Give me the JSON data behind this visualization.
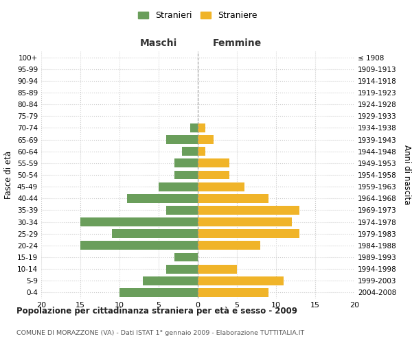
{
  "age_groups": [
    "100+",
    "95-99",
    "90-94",
    "85-89",
    "80-84",
    "75-79",
    "70-74",
    "65-69",
    "60-64",
    "55-59",
    "50-54",
    "45-49",
    "40-44",
    "35-39",
    "30-34",
    "25-29",
    "20-24",
    "15-19",
    "10-14",
    "5-9",
    "0-4"
  ],
  "birth_years": [
    "≤ 1908",
    "1909-1913",
    "1914-1918",
    "1919-1923",
    "1924-1928",
    "1929-1933",
    "1934-1938",
    "1939-1943",
    "1944-1948",
    "1949-1953",
    "1954-1958",
    "1959-1963",
    "1964-1968",
    "1969-1973",
    "1974-1978",
    "1979-1983",
    "1984-1988",
    "1989-1993",
    "1994-1998",
    "1999-2003",
    "2004-2008"
  ],
  "males": [
    0,
    0,
    0,
    0,
    0,
    0,
    1,
    4,
    2,
    3,
    3,
    5,
    9,
    4,
    15,
    11,
    15,
    3,
    4,
    7,
    10
  ],
  "females": [
    0,
    0,
    0,
    0,
    0,
    0,
    1,
    2,
    1,
    4,
    4,
    6,
    9,
    13,
    12,
    13,
    8,
    0,
    5,
    11,
    9
  ],
  "color_males": "#6a9e5b",
  "color_females": "#f0b429",
  "title": "Popolazione per cittadinanza straniera per età e sesso - 2009",
  "subtitle": "COMUNE DI MORAZZONE (VA) - Dati ISTAT 1° gennaio 2009 - Elaborazione TUTTITALIA.IT",
  "xlabel_left": "Maschi",
  "xlabel_right": "Femmine",
  "ylabel_left": "Fasce di età",
  "ylabel_right": "Anni di nascita",
  "legend_males": "Stranieri",
  "legend_females": "Straniere",
  "xlim": 20,
  "background_color": "#ffffff",
  "grid_color": "#cccccc"
}
